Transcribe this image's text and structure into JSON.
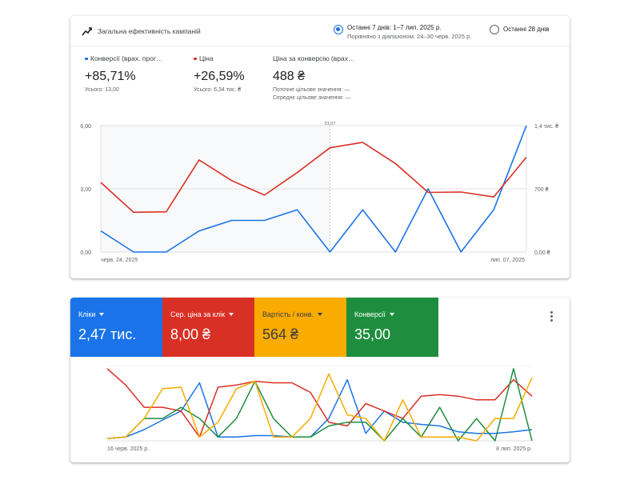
{
  "performance_card": {
    "title": "Загальна ефективність кампаній",
    "icon": "trending-up-icon",
    "range_options": [
      {
        "label": "Останні 7 днів: 1–7 лип. 2025 р.",
        "sublabel": "Порівняно з діапазоном: 24–30 черв. 2025 р.",
        "selected": true
      },
      {
        "label": "Останні 28 днів",
        "sublabel": "",
        "selected": false
      }
    ],
    "metrics": [
      {
        "name": "Конверсії (врах. прог…",
        "color": "#1a73e8",
        "value": "+85,71%",
        "sub1": "Усього: 13,00",
        "sub2": ""
      },
      {
        "name": "Ціна",
        "color": "#d93025",
        "value": "+26,59%",
        "sub1": "Усього: 6,34 тис. ₴",
        "sub2": ""
      },
      {
        "name": "Ціна за конверсію (врах…",
        "color": "",
        "value": "488 ₴",
        "sub1": "Поточне цільове значення: —",
        "sub2": "Середнє цільове значення: —"
      }
    ]
  },
  "chart_data": [
    {
      "type": "line",
      "x": [
        "черв. 24, 2025",
        "",
        "",
        "",
        "",
        "",
        "",
        "01.07",
        "",
        "",
        "",
        "",
        "",
        "лип. 07, 2025"
      ],
      "x_tick_labels": [
        "черв. 24, 2025",
        "лип. 07, 2025"
      ],
      "marker_label": "01.07",
      "marker_index": 7,
      "y_left": {
        "ylim": [
          0,
          6
        ],
        "ticks": [
          "0,00",
          "3,00",
          "6,00"
        ]
      },
      "y_right": {
        "ylim": [
          0,
          1400
        ],
        "ticks": [
          "0,00 ₴",
          "700 ₴",
          "1,4 тис. ₴"
        ]
      },
      "series": [
        {
          "name": "Конверсії (врах. прог…",
          "axis": "left",
          "color": "#1a73e8",
          "values": [
            1,
            0,
            0,
            1,
            1.5,
            1.5,
            2,
            0,
            2,
            0,
            3,
            0,
            2,
            6
          ]
        },
        {
          "name": "Ціна",
          "axis": "right",
          "color": "#d93025",
          "values": [
            770,
            440,
            445,
            1020,
            790,
            630,
            880,
            1155,
            1215,
            980,
            660,
            665,
            610,
            1050
          ]
        }
      ],
      "grid": true
    },
    {
      "type": "line",
      "x_tick_labels": [
        "16 черв. 2025 р.",
        "8 лип. 2025 р."
      ],
      "series": [
        {
          "color": "#1a73e8",
          "values": [
            0.03,
            0.05,
            0.15,
            0.28,
            0.4,
            0.78,
            0.05,
            0.05,
            0.07,
            0.07,
            0.05,
            0.05,
            0.3,
            0.82,
            0.1,
            0.4,
            0.25,
            0.22,
            0.2,
            0.12,
            0.1,
            0.1,
            0.12,
            0.15
          ]
        },
        {
          "color": "#d93025",
          "values": [
            0.97,
            0.75,
            0.45,
            0.45,
            0.4,
            0.05,
            0.72,
            0.75,
            0.8,
            0.78,
            0.78,
            0.65,
            0.25,
            0.2,
            0.5,
            0.4,
            0.3,
            0.6,
            0.62,
            0.6,
            0.55,
            0.55,
            0.82,
            0.6
          ]
        },
        {
          "color": "#1e8e3e",
          "values": [
            0.03,
            0.05,
            0.3,
            0.3,
            0.45,
            0.3,
            0.05,
            0.3,
            0.8,
            0.3,
            0.05,
            0.05,
            0.2,
            0.25,
            0.25,
            0.0,
            0.3,
            0.05,
            0.45,
            0.0,
            0.3,
            0.0,
            0.97,
            0.0
          ]
        },
        {
          "color": "#f9ab00",
          "values": [
            0.03,
            0.05,
            0.3,
            0.7,
            0.72,
            0.05,
            0.25,
            0.7,
            0.8,
            0.05,
            0.05,
            0.3,
            0.9,
            0.35,
            0.3,
            0.0,
            0.55,
            0.05,
            0.05,
            0.05,
            0.0,
            0.3,
            0.3,
            0.85
          ]
        }
      ]
    }
  ],
  "metric_tiles": [
    {
      "name": "Кліки",
      "value": "2,47 тис.",
      "color": "#1a73e8"
    },
    {
      "name": "Сер. ціна за клік",
      "value": "8,00 ₴",
      "color": "#d93025"
    },
    {
      "name": "Вартість / конв.",
      "value": "564 ₴",
      "color": "#f9ab00"
    },
    {
      "name": "Конверсії",
      "value": "35,00",
      "color": "#1e8e3e"
    }
  ],
  "more_options_icon": "more-vert-icon"
}
